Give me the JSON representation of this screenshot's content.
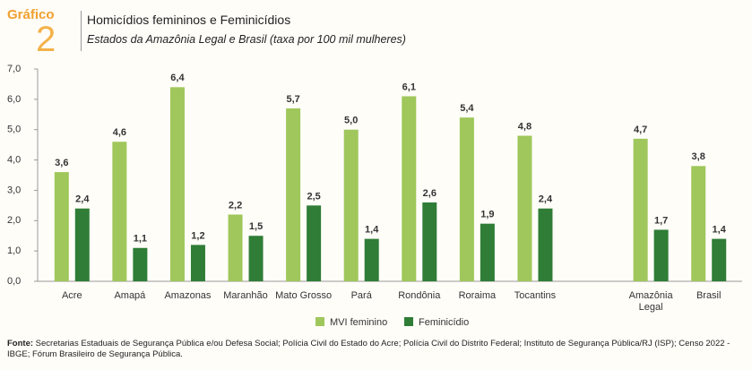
{
  "header": {
    "label": "Gráfico",
    "number": "2"
  },
  "chart_data": {
    "type": "bar",
    "title": "Homicídios femininos e Feminicídios",
    "subtitle": "Estados da Amazônia Legal e Brasil (taxa por 100 mil mulheres)",
    "categories": [
      "Acre",
      "Amapá",
      "Amazonas",
      "Maranhão",
      "Mato Grosso",
      "Pará",
      "Rondônia",
      "Roraima",
      "Tocantins",
      null,
      "Amazônia Legal",
      "Brasil"
    ],
    "series": [
      {
        "name": "MVI feminino",
        "color": "#9fc75b",
        "values": [
          3.6,
          4.6,
          6.4,
          2.2,
          5.7,
          5.0,
          6.1,
          5.4,
          4.8,
          null,
          4.7,
          3.8
        ],
        "value_labels": [
          "3,6",
          "4,6",
          "6,4",
          "2,2",
          "5,7",
          "5,0",
          "6,1",
          "5,4",
          "4,8",
          null,
          "4,7",
          "3,8"
        ]
      },
      {
        "name": "Feminicídio",
        "color": "#2f7d36",
        "values": [
          2.4,
          1.1,
          1.2,
          1.5,
          2.5,
          1.4,
          2.6,
          1.9,
          2.4,
          null,
          1.7,
          1.4
        ],
        "value_labels": [
          "2,4",
          "1,1",
          "1,2",
          "1,5",
          "2,5",
          "1,4",
          "2,6",
          "1,9",
          "2,4",
          null,
          "1,7",
          "1,4"
        ]
      }
    ],
    "ylim": [
      0,
      7
    ],
    "yticks": [
      {
        "value": 0,
        "label": "0,0"
      },
      {
        "value": 1,
        "label": "1,0"
      },
      {
        "value": 2,
        "label": "2,0"
      },
      {
        "value": 3,
        "label": "3,0"
      },
      {
        "value": 4,
        "label": "4,0"
      },
      {
        "value": 5,
        "label": "5,0"
      },
      {
        "value": 6,
        "label": "6,0"
      },
      {
        "value": 7,
        "label": "7,0"
      }
    ],
    "grid": false
  },
  "source": {
    "label": "Fonte:",
    "text": "Secretarias Estaduais de Segurança Pública e/ou Defesa Social; Polícia Civil do Estado do Acre; Polícia Civil do Distrito Federal; Instituto de Segurança Pública/RJ (ISP); Censo 2022 - IBGE; Fórum Brasileiro de Segurança Pública."
  }
}
